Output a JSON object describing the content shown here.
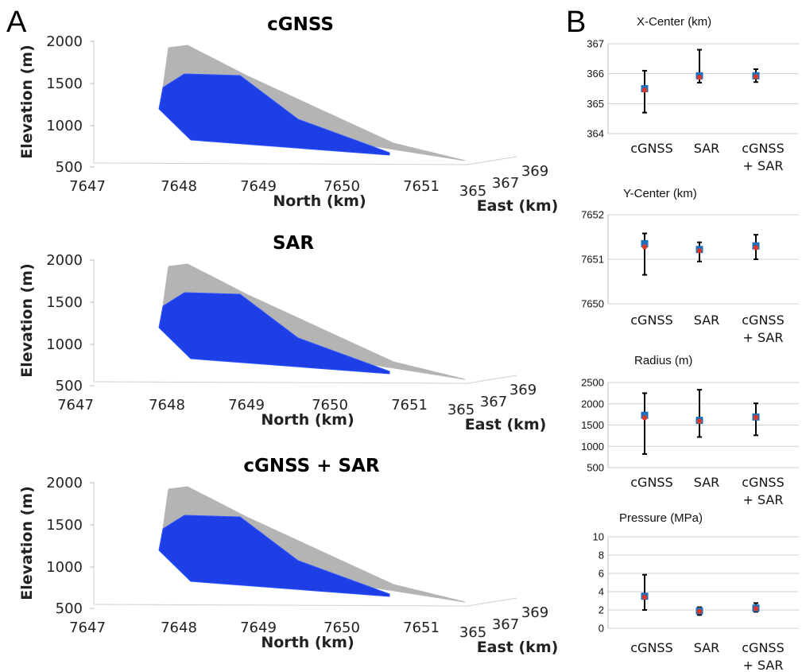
{
  "panel_labels": {
    "a": "A",
    "b": "B"
  },
  "colors": {
    "full_surface": "#b4b4b4",
    "fitted_surface": "#1f3fe6",
    "marker_square": "#1f6fbf",
    "marker_dot": "#d83a2a",
    "error_bar": "#000000",
    "grid": "#d0d0d0"
  },
  "chart_data": [
    {
      "type": "area",
      "panel": "A",
      "title": "cGNSS",
      "zlabel": "Elevation (m)",
      "xlabel": "North (km)",
      "ylabel": "East (km)",
      "z_ticks": [
        "2000",
        "1500",
        "1000",
        "500"
      ],
      "x_ticks": [
        "7647",
        "7648",
        "7649",
        "7650",
        "7651"
      ],
      "y_ticks": [
        "365",
        "367",
        "369"
      ],
      "zlim": [
        500,
        2000
      ],
      "xlim": [
        7647,
        7651.5
      ],
      "grid": false
    },
    {
      "type": "area",
      "panel": "A",
      "title": "SAR",
      "zlabel": "Elevation (m)",
      "xlabel": "North (km)",
      "ylabel": "East (km)",
      "z_ticks": [
        "2000",
        "1500",
        "1000",
        "500"
      ],
      "x_ticks": [
        "7647",
        "7648",
        "7649",
        "7650",
        "7651"
      ],
      "y_ticks": [
        "365",
        "367",
        "369"
      ],
      "zlim": [
        500,
        2000
      ],
      "xlim": [
        7647,
        7651.5
      ],
      "grid": false
    },
    {
      "type": "area",
      "panel": "A",
      "title": "cGNSS + SAR",
      "zlabel": "Elevation (m)",
      "xlabel": "North (km)",
      "ylabel": "East (km)",
      "z_ticks": [
        "2000",
        "1500",
        "1000",
        "500"
      ],
      "x_ticks": [
        "7647",
        "7648",
        "7649",
        "7650",
        "7651"
      ],
      "y_ticks": [
        "365",
        "367",
        "369"
      ],
      "zlim": [
        500,
        2000
      ],
      "xlim": [
        7647,
        7651.5
      ],
      "grid": false
    },
    {
      "type": "scatter",
      "panel": "B",
      "title": "X-Center (km)",
      "categories": [
        "cGNSS",
        "SAR",
        "cGNSS\n+ SAR"
      ],
      "ylim": [
        364,
        367
      ],
      "yticks": [
        364,
        365,
        366,
        367
      ],
      "values_square": [
        365.5,
        365.93,
        365.93
      ],
      "values_dot": [
        365.45,
        365.88,
        365.9
      ],
      "err_low": [
        364.7,
        365.7,
        365.72
      ],
      "err_high": [
        366.1,
        366.8,
        366.15
      ],
      "grid": true
    },
    {
      "type": "scatter",
      "panel": "B",
      "title": "Y-Center (km)",
      "categories": [
        "cGNSS",
        "SAR",
        "cGNSS\n+ SAR"
      ],
      "ylim": [
        7650,
        7652
      ],
      "yticks": [
        7650,
        7651,
        7652
      ],
      "values_square": [
        7651.35,
        7651.22,
        7651.3
      ],
      "values_dot": [
        7651.28,
        7651.19,
        7651.26
      ],
      "err_low": [
        7650.65,
        7650.95,
        7651.0
      ],
      "err_high": [
        7651.58,
        7651.38,
        7651.55
      ],
      "grid": true
    },
    {
      "type": "scatter",
      "panel": "B",
      "title": "Radius (m)",
      "categories": [
        "cGNSS",
        "SAR",
        "cGNSS\n+ SAR"
      ],
      "ylim": [
        500,
        2500
      ],
      "yticks": [
        500,
        1000,
        1500,
        2000,
        2500
      ],
      "values_square": [
        1730,
        1610,
        1690
      ],
      "values_dot": [
        1670,
        1590,
        1680
      ],
      "err_low": [
        820,
        1220,
        1260
      ],
      "err_high": [
        2250,
        2330,
        2010
      ],
      "grid": true
    },
    {
      "type": "scatter",
      "panel": "B",
      "title": "Pressure (MPa)",
      "categories": [
        "cGNSS",
        "SAR",
        "cGNSS\n+ SAR"
      ],
      "ylim": [
        0,
        10
      ],
      "yticks": [
        0,
        2,
        4,
        6,
        8,
        10
      ],
      "values_square": [
        3.5,
        1.9,
        2.2
      ],
      "values_dot": [
        3.4,
        1.85,
        2.15
      ],
      "err_low": [
        2.0,
        1.45,
        1.8
      ],
      "err_high": [
        5.85,
        2.3,
        2.75
      ],
      "grid": true
    }
  ]
}
